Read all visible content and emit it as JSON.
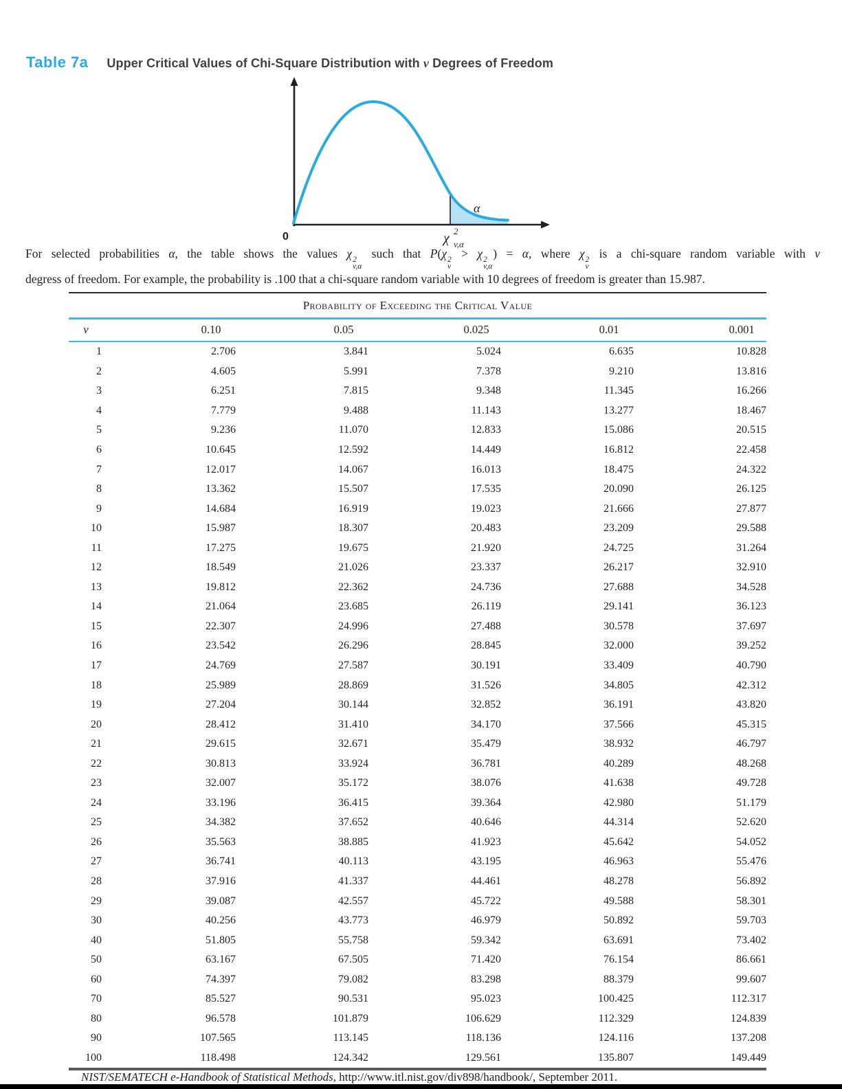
{
  "heading": {
    "label": "Table 7a",
    "title_segments": [
      {
        "text": "Upper Critical Values of Chi-Square Distribution with "
      },
      {
        "text": "ν",
        "italic": true
      },
      {
        "text": " Degrees of Freedom"
      }
    ]
  },
  "figure": {
    "origin_label": "0",
    "alpha_label": "α",
    "x_critical_chi": "χ",
    "x_critical_sup": "2",
    "x_critical_sub": "v,α"
  },
  "description": {
    "line1_segments": [
      {
        "text": "For selected probabilities "
      },
      {
        "text": "α",
        "italic": true
      },
      {
        "text": ", the table shows the values "
      },
      {
        "text": "χ",
        "italic": true
      },
      {
        "stack": [
          "2",
          "v,α"
        ]
      },
      {
        "text": " such that "
      },
      {
        "text": "P",
        "italic": true
      },
      {
        "text": "("
      },
      {
        "text": "χ",
        "italic": true
      },
      {
        "stack": [
          "2",
          "v"
        ]
      },
      {
        "text": " > "
      },
      {
        "text": "χ",
        "italic": true
      },
      {
        "stack": [
          "2",
          "v,α"
        ]
      },
      {
        "text": ") = "
      },
      {
        "text": "α",
        "italic": true
      },
      {
        "text": ", where "
      },
      {
        "text": "χ",
        "italic": true
      },
      {
        "stack": [
          "2",
          "v"
        ]
      },
      {
        "text": " is a chi-square random variable with "
      },
      {
        "text": "v",
        "italic": true
      }
    ],
    "line2_segments": [
      {
        "text": "degress of freedom. For example, the probability is .100 that a chi-square random variable with 10 degrees of freedom is greater than 15.987."
      }
    ]
  },
  "table": {
    "group_header": "Probability of Exceeding the Critical Value",
    "col_headers": [
      "ν",
      "0.10",
      "0.05",
      "0.025",
      "0.01",
      "0.001"
    ],
    "rows": [
      [
        "1",
        "2.706",
        "3.841",
        "5.024",
        "6.635",
        "10.828"
      ],
      [
        "2",
        "4.605",
        "5.991",
        "7.378",
        "9.210",
        "13.816"
      ],
      [
        "3",
        "6.251",
        "7.815",
        "9.348",
        "11.345",
        "16.266"
      ],
      [
        "4",
        "7.779",
        "9.488",
        "11.143",
        "13.277",
        "18.467"
      ],
      [
        "5",
        "9.236",
        "11.070",
        "12.833",
        "15.086",
        "20.515"
      ],
      [
        "6",
        "10.645",
        "12.592",
        "14.449",
        "16.812",
        "22.458"
      ],
      [
        "7",
        "12.017",
        "14.067",
        "16.013",
        "18.475",
        "24.322"
      ],
      [
        "8",
        "13.362",
        "15.507",
        "17.535",
        "20.090",
        "26.125"
      ],
      [
        "9",
        "14.684",
        "16.919",
        "19.023",
        "21.666",
        "27.877"
      ],
      [
        "10",
        "15.987",
        "18.307",
        "20.483",
        "23.209",
        "29.588"
      ],
      [
        "11",
        "17.275",
        "19.675",
        "21.920",
        "24.725",
        "31.264"
      ],
      [
        "12",
        "18.549",
        "21.026",
        "23.337",
        "26.217",
        "32.910"
      ],
      [
        "13",
        "19.812",
        "22.362",
        "24.736",
        "27.688",
        "34.528"
      ],
      [
        "14",
        "21.064",
        "23.685",
        "26.119",
        "29.141",
        "36.123"
      ],
      [
        "15",
        "22.307",
        "24.996",
        "27.488",
        "30.578",
        "37.697"
      ],
      [
        "16",
        "23.542",
        "26.296",
        "28.845",
        "32.000",
        "39.252"
      ],
      [
        "17",
        "24.769",
        "27.587",
        "30.191",
        "33.409",
        "40.790"
      ],
      [
        "18",
        "25.989",
        "28.869",
        "31.526",
        "34.805",
        "42.312"
      ],
      [
        "19",
        "27.204",
        "30.144",
        "32.852",
        "36.191",
        "43.820"
      ],
      [
        "20",
        "28.412",
        "31.410",
        "34.170",
        "37.566",
        "45.315"
      ],
      [
        "21",
        "29.615",
        "32.671",
        "35.479",
        "38.932",
        "46.797"
      ],
      [
        "22",
        "30.813",
        "33.924",
        "36.781",
        "40.289",
        "48.268"
      ],
      [
        "23",
        "32.007",
        "35.172",
        "38.076",
        "41.638",
        "49.728"
      ],
      [
        "24",
        "33.196",
        "36.415",
        "39.364",
        "42.980",
        "51.179"
      ],
      [
        "25",
        "34.382",
        "37.652",
        "40.646",
        "44.314",
        "52.620"
      ],
      [
        "26",
        "35.563",
        "38.885",
        "41.923",
        "45.642",
        "54.052"
      ],
      [
        "27",
        "36.741",
        "40.113",
        "43.195",
        "46.963",
        "55.476"
      ],
      [
        "28",
        "37.916",
        "41.337",
        "44.461",
        "48.278",
        "56.892"
      ],
      [
        "29",
        "39.087",
        "42.557",
        "45.722",
        "49.588",
        "58.301"
      ],
      [
        "30",
        "40.256",
        "43.773",
        "46.979",
        "50.892",
        "59.703"
      ],
      [
        "40",
        "51.805",
        "55.758",
        "59.342",
        "63.691",
        "73.402"
      ],
      [
        "50",
        "63.167",
        "67.505",
        "71.420",
        "76.154",
        "86.661"
      ],
      [
        "60",
        "74.397",
        "79.082",
        "83.298",
        "88.379",
        "99.607"
      ],
      [
        "70",
        "85.527",
        "90.531",
        "95.023",
        "100.425",
        "112.317"
      ],
      [
        "80",
        "96.578",
        "101.879",
        "106.629",
        "112.329",
        "124.839"
      ],
      [
        "90",
        "107.565",
        "113.145",
        "118.136",
        "124.116",
        "137.208"
      ],
      [
        "100",
        "118.498",
        "124.342",
        "129.561",
        "135.807",
        "149.449"
      ]
    ]
  },
  "footer": {
    "source": "NIST/SEMATECH e-Handbook of Statistical Methods",
    "rest": ", http://www.itl.nist.gov/div898/handbook/, September 2011."
  },
  "colors": {
    "accent_cyan": "#29abe2",
    "rule_cyan": "#45b8e8",
    "tail_shade": "#b5e2f4",
    "thick_rule_gray": "#58595b",
    "text_black": "#231f20"
  }
}
